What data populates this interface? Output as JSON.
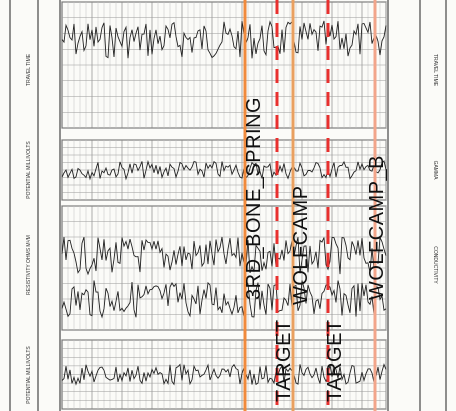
{
  "header": {
    "left_labels": [
      "TRAVEL TIME",
      "POTENTIAL MILLIVOLTS",
      "RESISTIVITY OHMS M²/M",
      "POTENTIAL MILLIVOLTS"
    ],
    "right_labels": [
      "TRAVEL TIME",
      "GAMMA",
      "CONDUCTIVITY"
    ]
  },
  "annotations": {
    "formations": [
      "3RD_BONE_SPRING",
      "WOLFCAMP",
      "WOLFCAMP_B"
    ],
    "targets": [
      "TARGET",
      "TARGET"
    ]
  }
}
